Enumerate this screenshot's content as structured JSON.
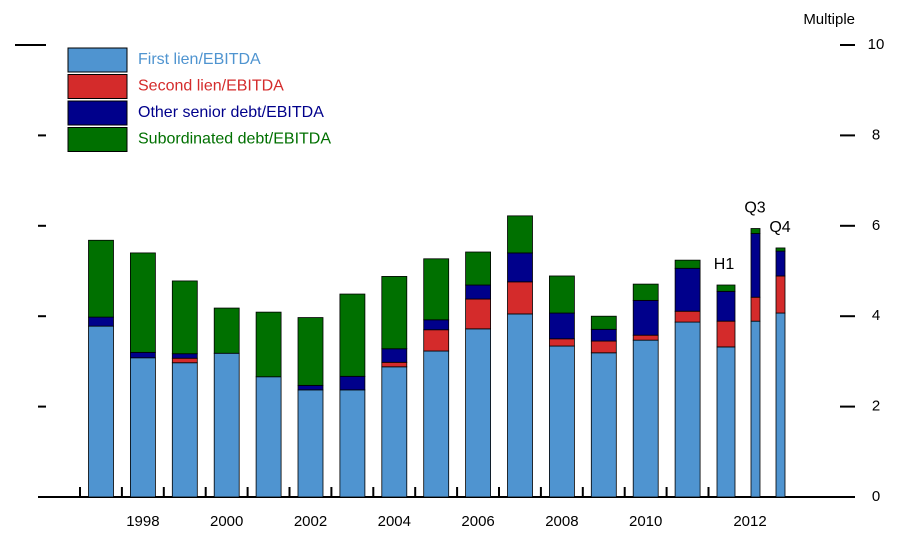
{
  "chart_data": {
    "type": "stacked_bar",
    "y_axis_label": "Multiple",
    "categories": [
      null,
      "1998",
      null,
      "2000",
      null,
      "2002",
      null,
      "2004",
      null,
      "2006",
      null,
      "2008",
      null,
      "2010",
      null,
      null,
      "2012",
      null
    ],
    "bar_labels": [
      null,
      null,
      null,
      null,
      null,
      null,
      null,
      null,
      null,
      null,
      null,
      null,
      null,
      null,
      null,
      "H1",
      "Q3",
      "Q4"
    ],
    "series": [
      {
        "name": "First lien/EBITDA",
        "color": "#4f94d0",
        "values": [
          3.78,
          3.08,
          2.97,
          3.18,
          2.66,
          2.37,
          2.37,
          2.88,
          3.23,
          3.72,
          4.05,
          3.34,
          3.19,
          3.47,
          3.87,
          3.32,
          3.89,
          4.07
        ]
      },
      {
        "name": "Second lien/EBITDA",
        "color": "#d42b2b",
        "values": [
          0,
          0,
          0.1,
          0,
          0,
          0,
          0,
          0.1,
          0.47,
          0.66,
          0.71,
          0.16,
          0.26,
          0.11,
          0.24,
          0.57,
          0.53,
          0.82
        ]
      },
      {
        "name": "Other senior debt/EBITDA",
        "color": "#00008b",
        "values": [
          0.2,
          0.12,
          0.1,
          0,
          0,
          0.1,
          0.3,
          0.3,
          0.22,
          0.31,
          0.64,
          0.57,
          0.26,
          0.77,
          0.95,
          0.66,
          1.41,
          0.55
        ]
      },
      {
        "name": "Subordinated debt/EBITDA",
        "color": "#007000",
        "values": [
          1.7,
          2.2,
          1.61,
          1.0,
          1.43,
          1.5,
          1.82,
          1.6,
          1.35,
          0.73,
          0.82,
          0.82,
          0.29,
          0.36,
          0.18,
          0.14,
          0.11,
          0.07
        ]
      }
    ],
    "ylim": [
      0,
      10
    ],
    "yticks": [
      0,
      2,
      4,
      6,
      8,
      10
    ]
  }
}
